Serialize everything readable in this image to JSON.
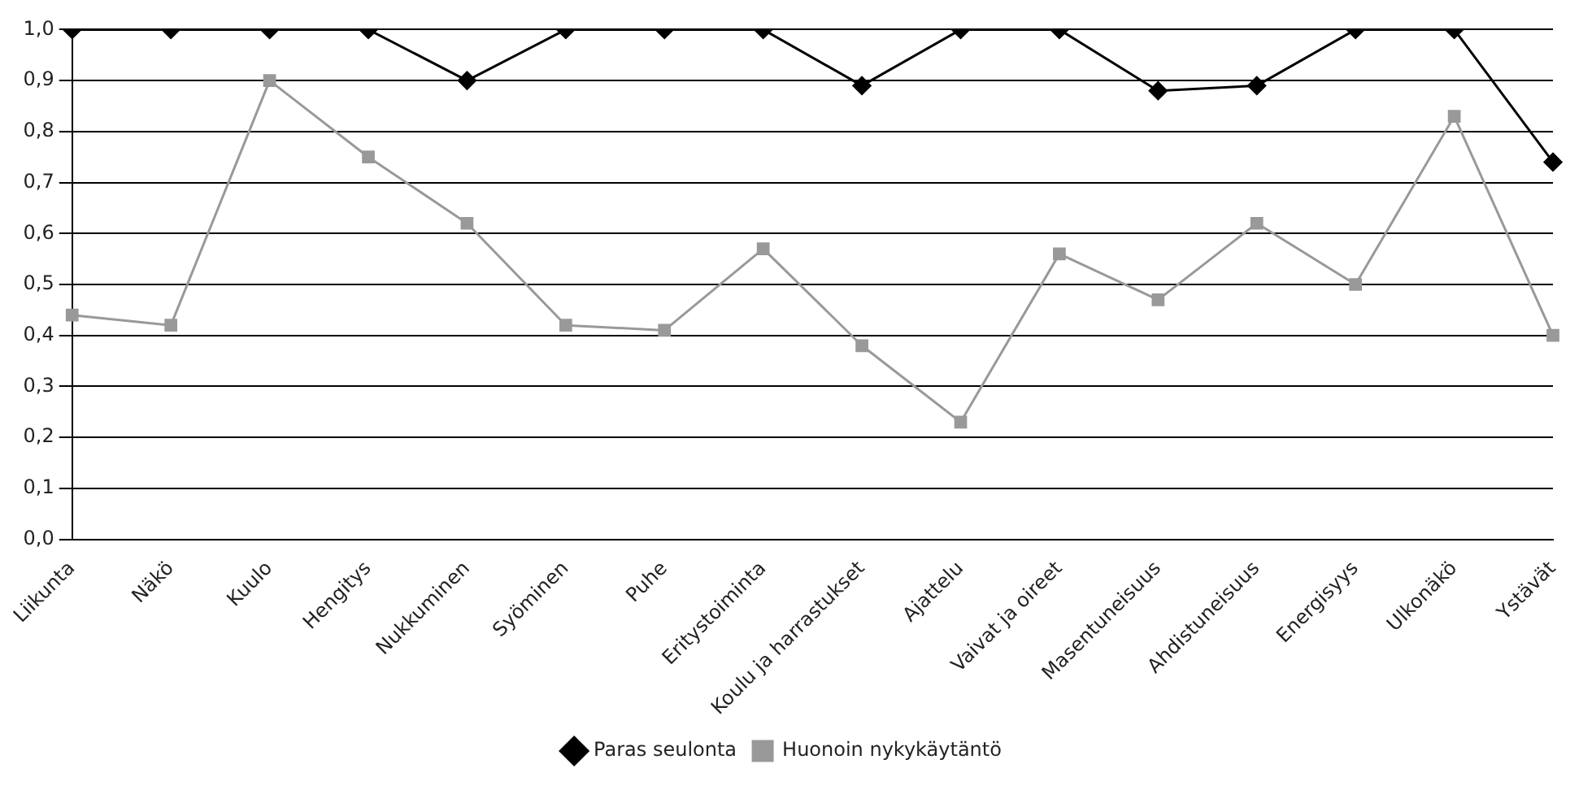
{
  "chart_data": {
    "type": "line",
    "categories": [
      "Liikunta",
      "Näkö",
      "Kuulo",
      "Hengitys",
      "Nukkuminen",
      "Syöminen",
      "Puhe",
      "Eritystoiminta",
      "Koulu ja harrastukset",
      "Ajattelu",
      "Vaivat ja oireet",
      "Masentuneisuus",
      "Ahdistuneisuus",
      "Energisyys",
      "Ulkonäkö",
      "Ystävät"
    ],
    "series": [
      {
        "name": "Paras seulonta",
        "color": "#000000",
        "marker": "diamond",
        "values": [
          1,
          1,
          1,
          1,
          0.9,
          1,
          1,
          1,
          0.89,
          1,
          1,
          0.88,
          0.89,
          1,
          1,
          0.74
        ]
      },
      {
        "name": "Huonoin nykykäytäntö",
        "color": "#999999",
        "marker": "square",
        "values": [
          0.44,
          0.42,
          0.9,
          0.75,
          0.62,
          0.42,
          0.41,
          0.57,
          0.38,
          0.23,
          0.56,
          0.47,
          0.62,
          0.5,
          0.83,
          0.4
        ]
      }
    ],
    "ylim": [
      0,
      1
    ],
    "yticks": [
      {
        "value": 0,
        "label": "0,0"
      },
      {
        "value": 0.1,
        "label": "0,1"
      },
      {
        "value": 0.2,
        "label": "0,2"
      },
      {
        "value": 0.3,
        "label": "0,3"
      },
      {
        "value": 0.4,
        "label": "0,4"
      },
      {
        "value": 0.5,
        "label": "0,5"
      },
      {
        "value": 0.6,
        "label": "0,6"
      },
      {
        "value": 0.7,
        "label": "0,7"
      },
      {
        "value": 0.8,
        "label": "0,8"
      },
      {
        "value": 0.9,
        "label": "0,9"
      },
      {
        "value": 1,
        "label": "1,0"
      }
    ],
    "grid": "y",
    "legend": "bottom",
    "line_style": "solid"
  }
}
